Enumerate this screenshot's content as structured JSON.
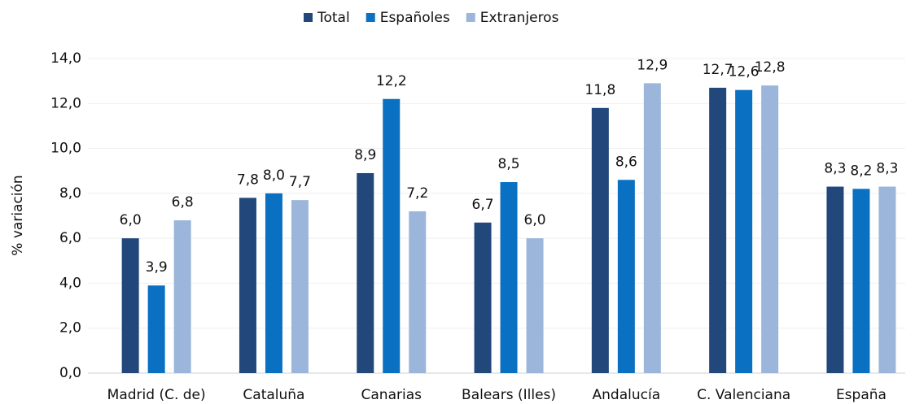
{
  "chart_data": {
    "type": "bar",
    "y_label": "% variación",
    "categories": [
      "Madrid (C. de)",
      "Cataluña",
      "Canarias",
      "Balears (Illes)",
      "Andalucía",
      "C. Valenciana",
      "España"
    ],
    "series": [
      {
        "name": "Total",
        "color": "#22477b",
        "values": [
          6.0,
          7.8,
          8.9,
          6.7,
          11.8,
          12.7,
          8.3
        ],
        "value_labels": [
          "6,0",
          "7,8",
          "8,9",
          "6,7",
          "11,8",
          "12,7",
          "8,3"
        ]
      },
      {
        "name": "Españoles",
        "color": "#0a70c2",
        "values": [
          3.9,
          8.0,
          12.2,
          8.5,
          8.6,
          12.6,
          8.2
        ],
        "value_labels": [
          "3,9",
          "8,0",
          "12,2",
          "8,5",
          "8,6",
          "12,6",
          "8,2"
        ]
      },
      {
        "name": "Extranjeros",
        "color": "#9bb6da",
        "values": [
          6.8,
          7.7,
          7.2,
          6.0,
          12.9,
          12.8,
          8.3
        ],
        "value_labels": [
          "6,8",
          "7,7",
          "7,2",
          "6,0",
          "12,9",
          "12,8",
          "8,3"
        ]
      }
    ],
    "ylim": [
      0,
      14
    ],
    "yticks": [
      {
        "value": 0,
        "label": "0,0"
      },
      {
        "value": 2,
        "label": "2,0"
      },
      {
        "value": 4,
        "label": "4,0"
      },
      {
        "value": 6,
        "label": "6,0"
      },
      {
        "value": 8,
        "label": "8,0"
      },
      {
        "value": 10,
        "label": "10,0"
      },
      {
        "value": 12,
        "label": "12,0"
      },
      {
        "value": 14,
        "label": "14,0"
      }
    ],
    "grid": true,
    "legend": "top"
  }
}
